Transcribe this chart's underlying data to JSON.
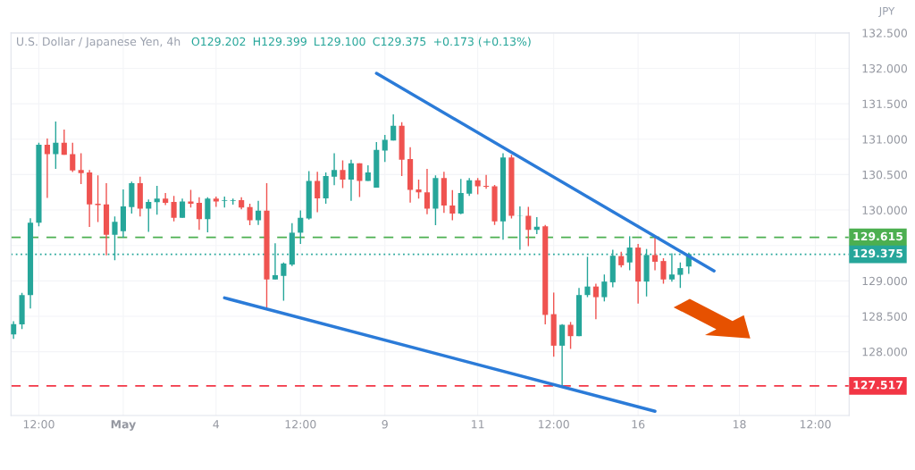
{
  "chart_data": {
    "type": "candlestick",
    "title": "U.S. Dollar / Japanese Yen, 4h",
    "annotations": [
      "O129.202",
      "H129.399",
      "L129.100",
      "C129.375",
      "+0.173 (+0.13%)",
      "JPY"
    ],
    "categories": [
      null,
      null,
      null,
      "12:00",
      null,
      null,
      null,
      null,
      null,
      null,
      null,
      null,
      null,
      "May",
      null,
      null,
      null,
      null,
      null,
      null,
      null,
      null,
      null,
      null,
      "4",
      null,
      null,
      null,
      null,
      null,
      null,
      null,
      null,
      null,
      "12:00",
      null,
      null,
      null,
      null,
      null,
      null,
      null,
      null,
      null,
      "9",
      null,
      null,
      null,
      null,
      null,
      null,
      null,
      null,
      null,
      null,
      "11",
      null,
      null,
      null,
      null,
      null,
      null,
      null,
      null,
      "12:00",
      null,
      null,
      null,
      null,
      null,
      null,
      null,
      null,
      null,
      "16",
      null,
      null,
      null,
      null,
      null,
      null,
      null,
      null,
      null,
      null,
      null,
      "18",
      null,
      null,
      null,
      null,
      null,
      null,
      null,
      null,
      "12:00",
      null,
      null,
      null,
      null
    ],
    "ohlc": [
      [
        128.244,
        128.43,
        128.18,
        128.39
      ],
      [
        128.385,
        128.83,
        128.32,
        128.8
      ],
      [
        128.8,
        129.885,
        128.61,
        129.82
      ],
      [
        129.82,
        130.95,
        129.77,
        130.92
      ],
      [
        130.92,
        131.01,
        130.17,
        130.79
      ],
      [
        130.79,
        131.25,
        130.58,
        130.95
      ],
      [
        130.95,
        131.135,
        130.78,
        130.78
      ],
      [
        130.79,
        130.95,
        130.535,
        130.56
      ],
      [
        130.565,
        130.8,
        130.365,
        130.52
      ],
      [
        130.53,
        130.565,
        129.76,
        130.08
      ],
      [
        130.09,
        130.49,
        129.83,
        130.07
      ],
      [
        130.08,
        130.38,
        129.36,
        129.65
      ],
      [
        129.65,
        129.91,
        129.29,
        129.835
      ],
      [
        129.7,
        130.29,
        129.61,
        130.05
      ],
      [
        130.04,
        130.4,
        129.95,
        130.38
      ],
      [
        130.38,
        130.47,
        129.91,
        130.02
      ],
      [
        130.02,
        130.15,
        129.69,
        130.115
      ],
      [
        130.11,
        130.34,
        129.935,
        130.16
      ],
      [
        130.16,
        130.24,
        130.07,
        130.1
      ],
      [
        130.115,
        130.2,
        129.84,
        129.89
      ],
      [
        129.89,
        130.16,
        129.89,
        130.12
      ],
      [
        130.12,
        130.285,
        130.035,
        130.09
      ],
      [
        130.1,
        130.18,
        129.72,
        129.87
      ],
      [
        129.87,
        130.18,
        129.685,
        130.16
      ],
      [
        130.16,
        130.19,
        130.045,
        130.12
      ],
      [
        130.13,
        130.19,
        130.035,
        130.14
      ],
      [
        130.13,
        130.16,
        130.075,
        130.14
      ],
      [
        130.14,
        130.18,
        130.01,
        130.035
      ],
      [
        130.04,
        130.09,
        129.785,
        129.855
      ],
      [
        129.855,
        130.13,
        129.79,
        129.99
      ],
      [
        129.99,
        130.38,
        128.62,
        129.02
      ],
      [
        129.02,
        129.53,
        129.02,
        129.08
      ],
      [
        129.07,
        129.26,
        128.72,
        129.245
      ],
      [
        129.23,
        129.815,
        129.21,
        129.68
      ],
      [
        129.68,
        129.995,
        129.52,
        129.89
      ],
      [
        129.88,
        130.55,
        129.865,
        130.41
      ],
      [
        130.41,
        130.54,
        129.97,
        130.165
      ],
      [
        130.165,
        130.53,
        130.09,
        130.48
      ],
      [
        130.47,
        130.8,
        130.35,
        130.565
      ],
      [
        130.565,
        130.7,
        130.31,
        130.43
      ],
      [
        130.43,
        130.71,
        130.13,
        130.66
      ],
      [
        130.66,
        130.66,
        130.185,
        130.41
      ],
      [
        130.41,
        130.63,
        130.41,
        130.53
      ],
      [
        130.315,
        130.96,
        130.315,
        130.85
      ],
      [
        130.84,
        131.06,
        130.68,
        130.99
      ],
      [
        130.98,
        131.35,
        130.98,
        131.19
      ],
      [
        131.19,
        131.24,
        130.48,
        130.71
      ],
      [
        130.72,
        130.885,
        130.105,
        130.285
      ],
      [
        130.29,
        130.43,
        130.16,
        130.25
      ],
      [
        130.25,
        130.58,
        129.94,
        130.02
      ],
      [
        130.02,
        130.49,
        129.785,
        130.45
      ],
      [
        130.45,
        130.54,
        129.96,
        130.065
      ],
      [
        130.065,
        130.28,
        129.855,
        129.95
      ],
      [
        129.95,
        130.44,
        129.94,
        130.24
      ],
      [
        130.23,
        130.45,
        130.2,
        130.42
      ],
      [
        130.42,
        130.45,
        130.22,
        130.335
      ],
      [
        130.34,
        130.495,
        130.3,
        130.33
      ],
      [
        130.335,
        130.355,
        129.79,
        129.84
      ],
      [
        129.84,
        130.8,
        129.58,
        130.74
      ],
      [
        130.74,
        130.78,
        129.88,
        129.92
      ],
      [
        129.915,
        130.05,
        129.44,
        129.92
      ],
      [
        129.92,
        130.045,
        129.49,
        129.72
      ],
      [
        129.72,
        129.9,
        129.66,
        129.765
      ],
      [
        129.77,
        129.79,
        128.385,
        128.52
      ],
      [
        128.53,
        128.835,
        127.93,
        128.085
      ],
      [
        128.085,
        128.39,
        127.517,
        128.38
      ],
      [
        128.38,
        128.42,
        128.04,
        128.22
      ],
      [
        128.22,
        128.9,
        128.22,
        128.8
      ],
      [
        128.8,
        129.34,
        128.77,
        128.92
      ],
      [
        128.92,
        128.96,
        128.46,
        128.77
      ],
      [
        128.77,
        129.09,
        128.71,
        128.99
      ],
      [
        128.98,
        129.44,
        128.91,
        129.355
      ],
      [
        129.35,
        129.41,
        129.19,
        129.22
      ],
      [
        129.26,
        129.63,
        129.15,
        129.47
      ],
      [
        129.47,
        129.52,
        128.68,
        128.99
      ],
      [
        128.99,
        129.45,
        128.78,
        129.365
      ],
      [
        129.365,
        129.61,
        129.15,
        129.27
      ],
      [
        129.28,
        129.32,
        128.96,
        129.02
      ],
      [
        129.02,
        129.39,
        128.99,
        129.09
      ],
      [
        129.085,
        129.26,
        128.9,
        129.18
      ],
      [
        129.202,
        129.399,
        129.1,
        129.375
      ],
      null,
      null,
      null,
      null,
      null,
      null,
      null,
      null,
      null,
      null,
      null,
      null,
      null,
      null,
      null,
      null,
      null,
      null,
      null
    ],
    "series": [
      {
        "type": "line",
        "color": "#2b7bd8",
        "values": [
          null,
          null,
          null,
          null,
          null,
          null,
          null,
          null,
          null,
          null,
          null,
          null,
          null,
          null,
          null,
          null,
          null,
          null,
          null,
          null,
          null,
          null,
          null,
          null,
          null,
          null,
          null,
          null,
          null,
          null,
          null,
          null,
          null,
          null,
          null,
          null,
          null,
          null,
          null,
          null,
          null,
          null,
          null,
          131.93,
          null,
          null,
          null,
          null,
          null,
          null,
          null,
          null,
          null,
          null,
          null,
          null,
          null,
          null,
          null,
          null,
          null,
          null,
          null,
          null,
          null,
          null,
          null,
          null,
          null,
          null,
          null,
          null,
          null,
          null,
          null,
          null,
          null,
          null,
          null,
          null,
          null,
          null,
          null,
          129.14,
          null,
          null,
          null,
          null,
          null,
          null,
          null,
          null,
          null,
          null,
          null,
          null,
          null,
          null,
          null,
          null
        ]
      },
      {
        "type": "line",
        "color": "#2b7bd8",
        "values": [
          null,
          null,
          null,
          null,
          null,
          null,
          null,
          null,
          null,
          null,
          null,
          null,
          null,
          null,
          null,
          null,
          null,
          null,
          null,
          null,
          null,
          null,
          null,
          null,
          null,
          128.76,
          null,
          null,
          null,
          null,
          null,
          null,
          null,
          null,
          null,
          null,
          null,
          null,
          null,
          null,
          null,
          null,
          null,
          null,
          null,
          null,
          null,
          null,
          null,
          null,
          null,
          null,
          null,
          null,
          null,
          null,
          null,
          null,
          null,
          null,
          null,
          null,
          null,
          null,
          null,
          null,
          null,
          null,
          null,
          null,
          null,
          null,
          null,
          null,
          null,
          null,
          127.16,
          null,
          null,
          null,
          null,
          null,
          null,
          null,
          null,
          null,
          null,
          null,
          null,
          null,
          null,
          null,
          null,
          null,
          null,
          null,
          null,
          null,
          null,
          null
        ]
      }
    ],
    "ref_lines": [
      {
        "axis": "y",
        "value": 129.615,
        "label": "129.615",
        "color": "#4caf50",
        "line_style": "dashed"
      },
      {
        "axis": "y",
        "value": 129.375,
        "label": "129.375",
        "color": "#26a69a",
        "line_style": "dotted"
      },
      {
        "axis": "y",
        "value": 127.517,
        "label": "127.517",
        "color": "#f23645",
        "line_style": "dashed"
      }
    ],
    "ylim": [
      127.1,
      132.5
    ],
    "yticks": [
      {
        "value": 128,
        "label": "128.000"
      },
      {
        "value": 128.5,
        "label": "128.500"
      },
      {
        "value": 129,
        "label": "129.000"
      },
      {
        "value": 129.5,
        "label": null
      },
      {
        "value": 130,
        "label": "130.000"
      },
      {
        "value": 130.5,
        "label": "130.500"
      },
      {
        "value": 131,
        "label": "131.000"
      },
      {
        "value": 131.5,
        "label": "131.500"
      },
      {
        "value": 132,
        "label": "132.000"
      },
      {
        "value": 132.5,
        "label": "132.500"
      }
    ],
    "grid": true,
    "legend": false
  }
}
